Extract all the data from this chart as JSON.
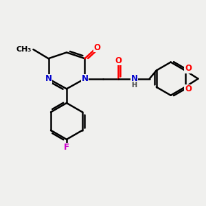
{
  "background_color": "#f0f0ee",
  "bond_color": "#000000",
  "bond_width": 1.8,
  "atom_colors": {
    "N": "#0000cc",
    "O": "#ff0000",
    "F": "#cc00cc",
    "H": "#444444"
  },
  "font_size": 8.5,
  "fig_size": [
    3.0,
    3.0
  ],
  "dpi": 100
}
